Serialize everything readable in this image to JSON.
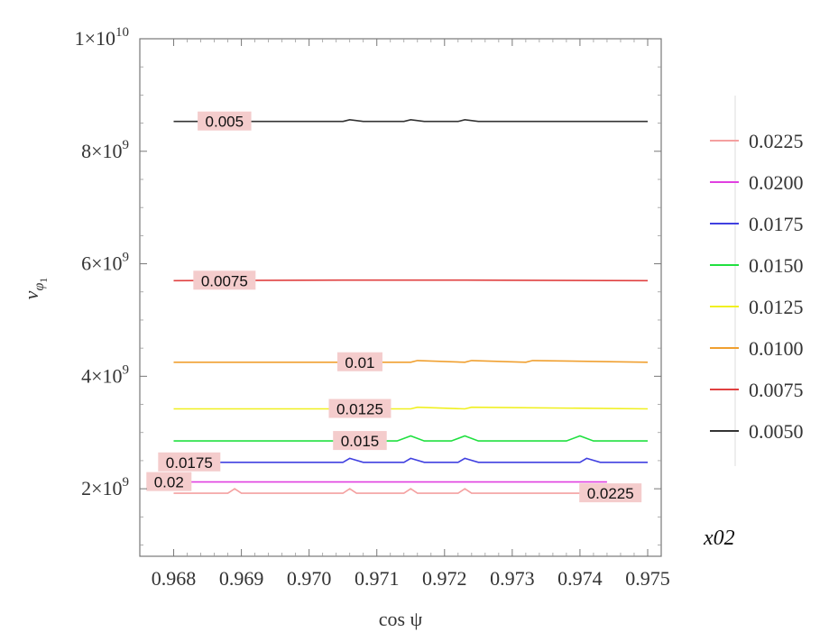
{
  "chart_data": {
    "type": "line",
    "xlabel": "cos ψ",
    "ylabel": "v",
    "ylabel_sub": "φ",
    "ylabel_subsub": "1",
    "xlim": [
      0.9675,
      0.9752
    ],
    "ylim": [
      800000000,
      10000000000
    ],
    "x_ticks": [
      0.968,
      0.969,
      0.97,
      0.971,
      0.972,
      0.973,
      0.974,
      0.975
    ],
    "x_tick_labels": [
      "0.968",
      "0.969",
      "0.970",
      "0.971",
      "0.972",
      "0.973",
      "0.974",
      "0.975"
    ],
    "y_ticks": [
      {
        "value": 2000000000,
        "mantissa": "2",
        "exponent": "9"
      },
      {
        "value": 4000000000,
        "mantissa": "4",
        "exponent": "9"
      },
      {
        "value": 6000000000,
        "mantissa": "6",
        "exponent": "9"
      },
      {
        "value": 8000000000,
        "mantissa": "8",
        "exponent": "9"
      },
      {
        "value": 10000000000,
        "mantissa": "1",
        "exponent": "10"
      }
    ],
    "grid": false,
    "legend_title": "x02",
    "legend_position": "right",
    "series": [
      {
        "name": "0.0225",
        "label": "0.0225",
        "color": "#f4a0a0",
        "label_x": 0.97445,
        "x": [
          0.968,
          0.9688,
          0.9689,
          0.969,
          0.9705,
          0.9706,
          0.9707,
          0.9714,
          0.9715,
          0.9716,
          0.9722,
          0.9723,
          0.9724,
          0.9744
        ],
        "y": [
          1920000000,
          1920000000,
          2000000000,
          1920000000,
          1920000000,
          2000000000,
          1920000000,
          1920000000,
          2000000000,
          1920000000,
          1920000000,
          2000000000,
          1920000000,
          1920000000
        ]
      },
      {
        "name": "0.0200",
        "label": "0.02",
        "color": "#e040e0",
        "label_x": 0.96793,
        "x": [
          0.968,
          0.9744
        ],
        "y": [
          2120000000,
          2120000000
        ]
      },
      {
        "name": "0.0175",
        "label": "0.0175",
        "color": "#4040e0",
        "label_x": 0.96823,
        "x": [
          0.968,
          0.9705,
          0.9706,
          0.9708,
          0.9714,
          0.9715,
          0.9717,
          0.9722,
          0.9723,
          0.9725,
          0.974,
          0.9741,
          0.9743,
          0.975
        ],
        "y": [
          2470000000,
          2470000000,
          2540000000,
          2470000000,
          2470000000,
          2540000000,
          2470000000,
          2470000000,
          2540000000,
          2470000000,
          2470000000,
          2540000000,
          2470000000,
          2470000000
        ]
      },
      {
        "name": "0.0150",
        "label": "0.015",
        "color": "#20e040",
        "label_x": 0.97075,
        "x": [
          0.968,
          0.9713,
          0.9715,
          0.9717,
          0.9721,
          0.9723,
          0.9725,
          0.9738,
          0.974,
          0.9742,
          0.975
        ],
        "y": [
          2850000000,
          2850000000,
          2940000000,
          2850000000,
          2850000000,
          2940000000,
          2850000000,
          2850000000,
          2940000000,
          2850000000,
          2850000000
        ]
      },
      {
        "name": "0.0125",
        "label": "0.0125",
        "color": "#f0f020",
        "label_x": 0.97075,
        "x": [
          0.968,
          0.9715,
          0.9716,
          0.9723,
          0.9724,
          0.975
        ],
        "y": [
          3420000000,
          3420000000,
          3450000000,
          3420000000,
          3450000000,
          3420000000
        ]
      },
      {
        "name": "0.0100",
        "label": "0.01",
        "color": "#f0a030",
        "label_x": 0.97075,
        "x": [
          0.968,
          0.9715,
          0.9716,
          0.9723,
          0.9724,
          0.9732,
          0.9733,
          0.975
        ],
        "y": [
          4250000000,
          4250000000,
          4280000000,
          4250000000,
          4280000000,
          4250000000,
          4280000000,
          4250000000
        ]
      },
      {
        "name": "0.0075",
        "label": "0.0075",
        "color": "#e04040",
        "label_x": 0.96875,
        "x": [
          0.968,
          0.9706,
          0.9715,
          0.9723,
          0.975
        ],
        "y": [
          5700000000,
          5710000000,
          5710000000,
          5710000000,
          5700000000
        ]
      },
      {
        "name": "0.0050",
        "label": "0.005",
        "color": "#333333",
        "label_x": 0.96875,
        "x": [
          0.968,
          0.9705,
          0.9706,
          0.9708,
          0.9714,
          0.9715,
          0.9717,
          0.9722,
          0.9723,
          0.9725,
          0.975
        ],
        "y": [
          8530000000,
          8530000000,
          8560000000,
          8530000000,
          8530000000,
          8560000000,
          8530000000,
          8530000000,
          8560000000,
          8530000000,
          8530000000
        ]
      }
    ]
  }
}
